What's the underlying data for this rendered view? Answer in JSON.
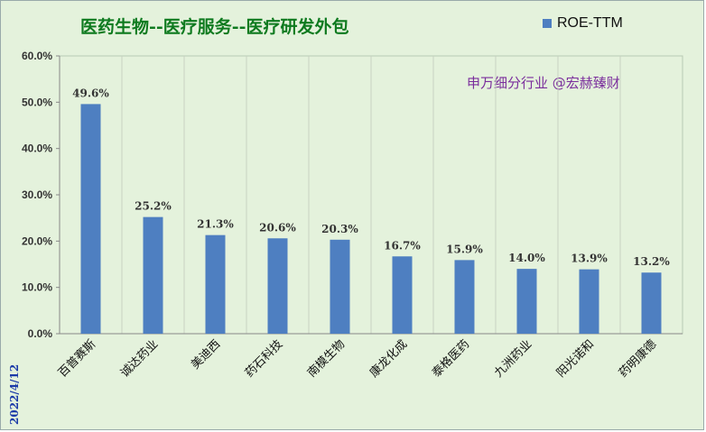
{
  "chart_data": {
    "type": "bar",
    "title": "医药生物--医疗服务--医疗研发外包",
    "annotation": "申万细分行业 @宏赫臻财",
    "date": "2022/4/12",
    "categories": [
      "百普赛斯",
      "诚达药业",
      "美迪西",
      "药石科技",
      "南模生物",
      "康龙化成",
      "泰格医药",
      "九洲药业",
      "阳光诺和",
      "药明康德"
    ],
    "series": [
      {
        "name": "ROE-TTM",
        "values": [
          49.6,
          25.2,
          21.3,
          20.6,
          20.3,
          16.7,
          15.9,
          14.0,
          13.9,
          13.2
        ],
        "labels": [
          "49.6%",
          "25.2%",
          "21.3%",
          "20.6%",
          "20.3%",
          "16.7%",
          "15.9%",
          "14.0%",
          "13.9%",
          "13.2%"
        ]
      }
    ],
    "y_ticks": [
      "0.0%",
      "10.0%",
      "20.0%",
      "30.0%",
      "40.0%",
      "50.0%",
      "60.0%"
    ],
    "ylim": [
      0,
      60
    ],
    "grid": "vertical",
    "legend_position": "top-right",
    "colors": {
      "bar": "#4e7fc1",
      "background": "#e4f2dc",
      "title": "#0e7a1f",
      "annotation": "#7a2d9c",
      "date": "#1b3aa8"
    }
  }
}
